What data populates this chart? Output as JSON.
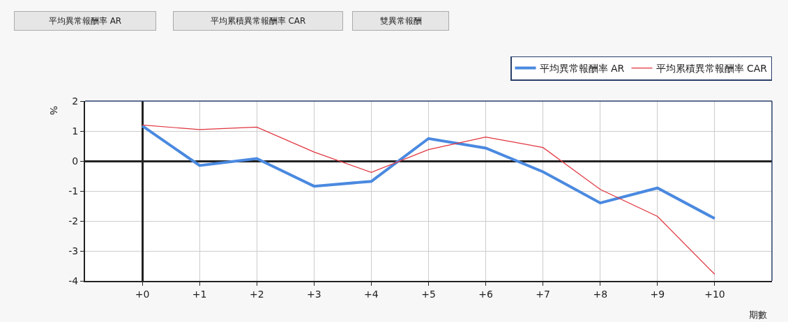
{
  "chart_data": {
    "type": "line",
    "xlabel": "期數",
    "ylabel": "%",
    "annotations": [
      "平均異常報酬率 AR",
      "平均累積異常報酬率 CAR",
      "雙異常報酬"
    ],
    "x": [
      0,
      1,
      2,
      3,
      4,
      5,
      6,
      7,
      8,
      9,
      10
    ],
    "series": [
      {
        "name": "平均異常報酬率 AR",
        "color": "#4a89e0",
        "values": [
          1.17,
          -0.15,
          0.08,
          -0.84,
          -0.68,
          0.75,
          0.43,
          -0.36,
          -1.4,
          -0.9,
          -1.92
        ]
      },
      {
        "name": "平均累積異常報酬率 CAR",
        "color": "#e0333d",
        "values": [
          1.2,
          1.05,
          1.13,
          0.3,
          -0.38,
          0.38,
          0.8,
          0.45,
          -0.95,
          -1.85,
          -3.78
        ]
      }
    ],
    "xlim": [
      -1,
      11
    ],
    "xticks": [
      {
        "value": 0,
        "label": "+0"
      },
      {
        "value": 1,
        "label": "+1"
      },
      {
        "value": 2,
        "label": "+2"
      },
      {
        "value": 3,
        "label": "+3"
      },
      {
        "value": 4,
        "label": "+4"
      },
      {
        "value": 5,
        "label": "+5"
      },
      {
        "value": 6,
        "label": "+6"
      },
      {
        "value": 7,
        "label": "+7"
      },
      {
        "value": 8,
        "label": "+8"
      },
      {
        "value": 9,
        "label": "+9"
      },
      {
        "value": 10,
        "label": "+10"
      }
    ],
    "ylim": [
      -4,
      2
    ],
    "yticks": [
      -4,
      -3,
      -2,
      -1,
      0,
      1,
      2
    ],
    "grid": true,
    "legend": "top right",
    "marker": "none",
    "line_style": "solid"
  }
}
